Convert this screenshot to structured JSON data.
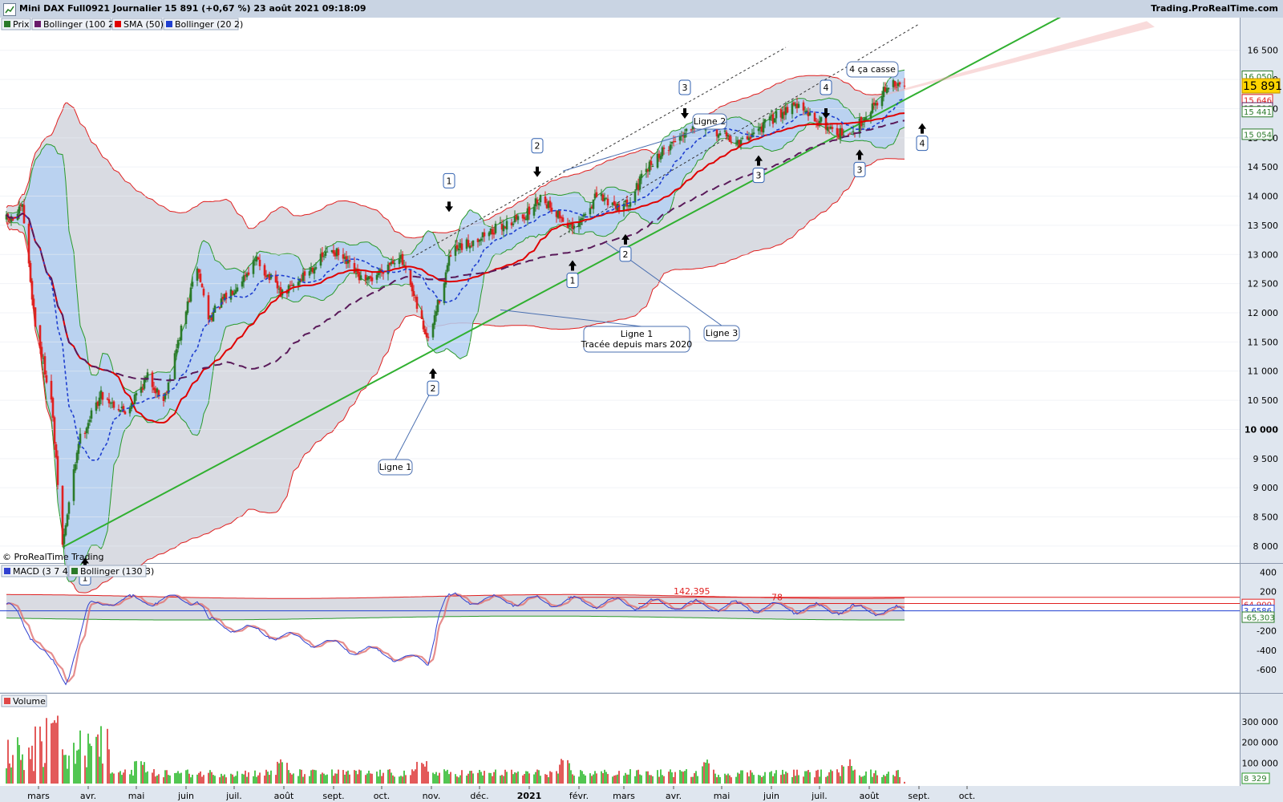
{
  "window": {
    "title": "Mini DAX Full0921 Journalier 15 891 (+0,67 %) 23 août 2021 09:18:09",
    "brand": "Trading.ProRealTime.com",
    "copyright": "© ProRealTime Trading"
  },
  "colors": {
    "up": "#2a7a2a",
    "down": "#e02020",
    "sma": "#e00000",
    "bb20_mid": "#1f3fd0",
    "bb100_mid": "#5a1a5a",
    "trend": "#30b030",
    "band_fill": "#b4d0f2",
    "outer_fill": "#d9dbe2"
  },
  "chart_data": [
    {
      "type": "candlestick",
      "title": "Mini DAX Full0921 Journalier",
      "legend": [
        "Prix",
        "Bollinger (100 2)",
        "SMA (50)",
        "Bollinger (20 2)"
      ],
      "x_labels": [
        "mars",
        "avr.",
        "mai",
        "juin",
        "juil.",
        "août",
        "sept.",
        "oct.",
        "nov.",
        "déc.",
        "2021",
        "févr.",
        "mars",
        "avr.",
        "mai",
        "juin",
        "juil.",
        "août",
        "sept.",
        "oct."
      ],
      "y_ticks": [
        "16 500",
        "16 000",
        "15 500",
        "15 000",
        "14 500",
        "14 000",
        "13 500",
        "13 000",
        "12 500",
        "12 000",
        "11 500",
        "11 000",
        "10 500",
        "10 000",
        "9 500",
        "9 000",
        "8 500",
        "8 000"
      ],
      "ylim": [
        7600,
        16950
      ],
      "price_path": [
        {
          "t": "2020-02-14",
          "v": 13600
        },
        {
          "t": "2020-02-20",
          "v": 13800
        },
        {
          "t": "2020-02-28",
          "v": 11800
        },
        {
          "t": "2020-03-09",
          "v": 10500
        },
        {
          "t": "2020-03-16",
          "v": 8000
        },
        {
          "t": "2020-03-26",
          "v": 9800
        },
        {
          "t": "2020-04-09",
          "v": 10600
        },
        {
          "t": "2020-04-24",
          "v": 10300
        },
        {
          "t": "2020-05-08",
          "v": 10900
        },
        {
          "t": "2020-05-18",
          "v": 10500
        },
        {
          "t": "2020-06-08",
          "v": 12800
        },
        {
          "t": "2020-06-15",
          "v": 11900
        },
        {
          "t": "2020-07-15",
          "v": 12900
        },
        {
          "t": "2020-07-31",
          "v": 12300
        },
        {
          "t": "2020-08-31",
          "v": 13100
        },
        {
          "t": "2020-09-21",
          "v": 12500
        },
        {
          "t": "2020-10-12",
          "v": 13000
        },
        {
          "t": "2020-10-30",
          "v": 11500
        },
        {
          "t": "2020-11-13",
          "v": 13000
        },
        {
          "t": "2020-12-01",
          "v": 13300
        },
        {
          "t": "2020-12-31",
          "v": 13700
        },
        {
          "t": "2021-01-08",
          "v": 14000
        },
        {
          "t": "2021-01-29",
          "v": 13400
        },
        {
          "t": "2021-02-12",
          "v": 14000
        },
        {
          "t": "2021-03-01",
          "v": 13800
        },
        {
          "t": "2021-03-19",
          "v": 14600
        },
        {
          "t": "2021-04-15",
          "v": 15300
        },
        {
          "t": "2021-05-12",
          "v": 14900
        },
        {
          "t": "2021-06-15",
          "v": 15600
        },
        {
          "t": "2021-06-23",
          "v": 15400
        },
        {
          "t": "2021-07-19",
          "v": 15000
        },
        {
          "t": "2021-08-13",
          "v": 15900
        },
        {
          "t": "2021-08-23",
          "v": 15891
        }
      ],
      "price_labels": [
        {
          "text": "16 050",
          "v": 16050,
          "color": "#2a7a2a"
        },
        {
          "text": "15 891",
          "v": 15891,
          "color": "#000000",
          "highlight": true
        },
        {
          "text": "15 646",
          "v": 15646,
          "color": "#e02020"
        },
        {
          "text": "15 506",
          "v": 15506,
          "color": "#5a1a5a"
        },
        {
          "text": "15 441",
          "v": 15441,
          "color": "#2a7a2a"
        },
        {
          "text": "15 054",
          "v": 15054,
          "color": "#2a7a2a"
        }
      ],
      "annotations": [
        "Ligne 1",
        "Ligne 1\nTracée depuis mars 2020",
        "Ligne 2",
        "Ligne 3",
        "4 ça casse"
      ],
      "markers": [
        "1",
        "2",
        "1",
        "2",
        "1",
        "2",
        "3",
        "3",
        "4",
        "3",
        "4"
      ]
    },
    {
      "type": "line",
      "title": "MACD (3 7 4)",
      "legend": [
        "MACD (3 7 4)",
        "Bollinger (130 3)"
      ],
      "y_ticks": [
        "400",
        "200",
        "-200",
        "-400",
        "-600"
      ],
      "ylim": [
        -820,
        460
      ],
      "text_labels": [
        "142,395",
        "78"
      ],
      "value_labels": [
        {
          "text": "64,900",
          "v": 64.9,
          "color": "#e02020"
        },
        {
          "text": "3,6586",
          "v": 3.66,
          "color": "#1f3fd0"
        },
        {
          "text": "-65,303",
          "v": -65.3,
          "color": "#2a7a2a"
        }
      ],
      "path": [
        {
          "t": "2020-02-14",
          "v": 60
        },
        {
          "t": "2020-03-02",
          "v": -380
        },
        {
          "t": "2020-03-18",
          "v": -720
        },
        {
          "t": "2020-04-02",
          "v": 80
        },
        {
          "t": "2020-04-14",
          "v": 260
        },
        {
          "t": "2020-06-08",
          "v": 300
        },
        {
          "t": "2020-06-15",
          "v": -120
        },
        {
          "t": "2020-10-30",
          "v": -520
        },
        {
          "t": "2020-11-10",
          "v": 320
        },
        {
          "t": "2021-08-23",
          "v": 3.66
        }
      ]
    },
    {
      "type": "bar",
      "title": "Volume",
      "y_ticks": [
        "300 000",
        "200 000",
        "100 000"
      ],
      "ylim": [
        0,
        400000
      ],
      "last_value": "8 329",
      "peak": 340000
    }
  ]
}
